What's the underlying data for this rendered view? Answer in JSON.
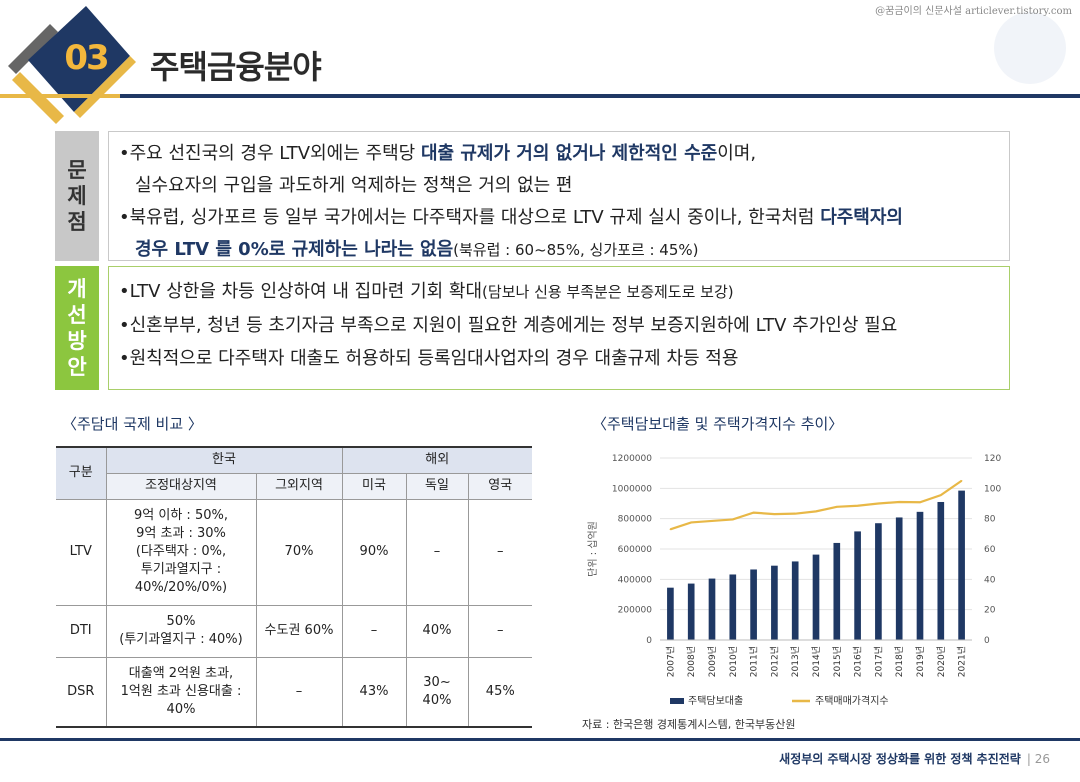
{
  "watermark": "@꿈금이의 신문사설 articlever.tistory.com",
  "section": {
    "number": "03",
    "title": "주택금융분야"
  },
  "problem": {
    "label": [
      "문",
      "제",
      "점"
    ],
    "lines": [
      {
        "pre": "•주요 선진국의 경우 LTV외에는 주택당 ",
        "hl": "대출 규제가 거의 없거나 제한적인 수준",
        "post": "이며,"
      },
      {
        "pre": "실수요자의 구입을 과도하게 억제하는 정책은 거의 없는 편"
      },
      {
        "pre": "•북유럽, 싱가포르 등 일부 국가에서는 다주택자를 대상으로 LTV 규제 실시 중이나, 한국처럼 ",
        "hl": "다주택자의"
      },
      {
        "hl": "경우 LTV 를 0%로 규제하는 나라는 없음",
        "small": "(북유럽 : 60~85%, 싱가포르 : 45%)"
      }
    ]
  },
  "improve": {
    "label": [
      "개",
      "선",
      "방",
      "안"
    ],
    "lines": [
      {
        "pre": "•LTV 상한을 차등 인상하여 내 집마련 기회 확대",
        "small": "(담보나 신용 부족분은 보증제도로 보강)"
      },
      {
        "pre": "•신혼부부, 청년 등 초기자금 부족으로 지원이 필요한 계층에게는 정부 보증지원하에 LTV 추가인상 필요"
      },
      {
        "pre": "•원칙적으로 다주택자 대출도 허용하되 등록임대사업자의 경우 대출규제 차등 적용"
      }
    ]
  },
  "table": {
    "caption": "〈주담대 국제 비교 〉",
    "header_group": {
      "category": "구분",
      "korea": "한국",
      "overseas": "해외"
    },
    "sub_headers": [
      "조정대상지역",
      "그외지역",
      "미국",
      "독일",
      "영국"
    ],
    "rows": [
      {
        "label": "LTV",
        "cells": [
          "9억 이하 : 50%,\n9억 초과 : 30%\n(다주택자 : 0%,\n투기과열지구 :\n40%/20%/0%)",
          "70%",
          "90%",
          "–",
          "–"
        ]
      },
      {
        "label": "DTI",
        "cells": [
          "50%\n(투기과열지구 : 40%)",
          "수도권 60%",
          "–",
          "40%",
          "–"
        ]
      },
      {
        "label": "DSR",
        "cells": [
          "대출액 2억원 초과,\n1억원 초과 신용대출 :\n40%",
          "–",
          "43%",
          "30~\n40%",
          "45%"
        ]
      }
    ]
  },
  "chart_caption": "〈주택담보대출 및 주택가격지수 추이〉",
  "chart_data": {
    "type": "bar",
    "title": "",
    "categories": [
      "2007년",
      "2008년",
      "2009년",
      "2010년",
      "2011년",
      "2012년",
      "2013년",
      "2014년",
      "2015년",
      "2016년",
      "2017년",
      "2018년",
      "2019년",
      "2020년",
      "2021년"
    ],
    "ylabel": "단위 : 십억원",
    "ylim": [
      0,
      1200000
    ],
    "y_ticks": [
      "0",
      "200000",
      "400000",
      "600000",
      "800000",
      "1000000",
      "1200000"
    ],
    "y2lim": [
      0,
      120
    ],
    "y2_ticks": [
      "0",
      "20",
      "40",
      "60",
      "80",
      "100",
      "120"
    ],
    "series": [
      {
        "name": "주택담보대출",
        "type": "bar",
        "axis": "left",
        "color": "#1f3864",
        "values": [
          345000,
          372000,
          405000,
          432000,
          465000,
          490000,
          518000,
          563000,
          640000,
          716000,
          770000,
          808000,
          845000,
          910000,
          985000
        ]
      },
      {
        "name": "주택매매가격지수",
        "type": "line",
        "axis": "right",
        "color": "#e8b847",
        "values": [
          73,
          77.5,
          78.5,
          79.5,
          84,
          83,
          83.3,
          84.8,
          87.8,
          88.5,
          90,
          91,
          90.8,
          95.5,
          105
        ]
      }
    ],
    "legend_position": "bottom",
    "grid": true
  },
  "source": "자료 : 한국은행 경제통계시스템, 한국부동산원",
  "footer": {
    "title": "새정부의 주택시장 정상화를 위한 정책 추진전략",
    "page": "| 26"
  }
}
